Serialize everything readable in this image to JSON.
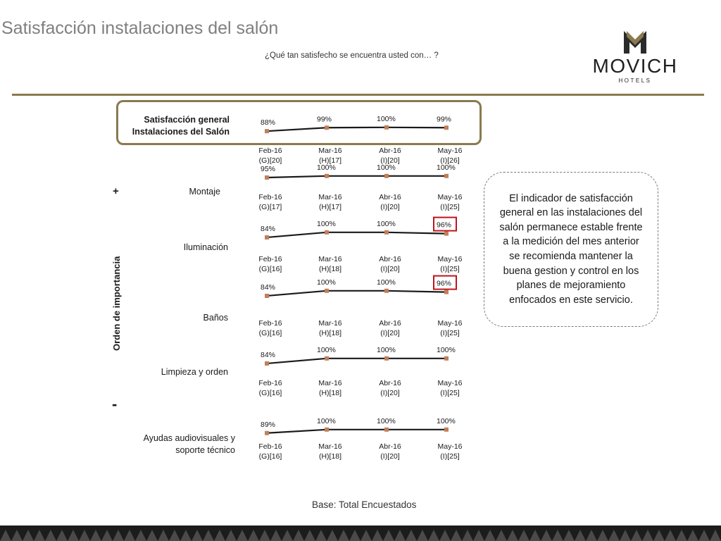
{
  "header": {
    "title": "Satisfacción instalaciones del salón",
    "question": "¿Qué tan satisfecho se encuentra usted con… ?"
  },
  "logo": {
    "name": "MOVICH",
    "sub": "HOTELS"
  },
  "importance": {
    "label": "Orden de importancia",
    "plus": "+",
    "minus": "-"
  },
  "note": "El indicador de satisfacción general en las instalaciones del salón permanece estable frente a la medición del mes anterior se recomienda mantener la buena gestion y control en los planes de mejoramiento enfocados en este servicio.",
  "base": "Base: Total Encuestados",
  "colors": {
    "gold": "#8a7a4e",
    "marker": "#c0805a",
    "line": "#1a1a1a",
    "highlight_box": "#c0141c"
  },
  "chart_data": [
    {
      "type": "line",
      "title": "Satisfacción general Instalaciones del Salón",
      "categories": [
        "Feb-16 (G)[20]",
        "Mar-16 (H)[17]",
        "Abr-16 (I)[20]",
        "May-16 (I)[26]"
      ],
      "values": [
        88,
        99,
        100,
        99
      ],
      "value_labels": [
        "88%",
        "99%",
        "100%",
        "99%"
      ],
      "highlighted": []
    },
    {
      "type": "line",
      "title": "Montaje",
      "categories": [
        "Feb-16 (G)[17]",
        "Mar-16 (H)[17]",
        "Abr-16 (I)[20]",
        "May-16 (I)[25]"
      ],
      "values": [
        95,
        100,
        100,
        100
      ],
      "value_labels": [
        "95%",
        "100%",
        "100%",
        "100%"
      ],
      "highlighted": []
    },
    {
      "type": "line",
      "title": "Iluminación",
      "categories": [
        "Feb-16 (G)[16]",
        "Mar-16 (H)[18]",
        "Abr-16 (I)[20]",
        "May-16 (I)[25]"
      ],
      "values": [
        84,
        100,
        100,
        96
      ],
      "value_labels": [
        "84%",
        "100%",
        "100%",
        "96%"
      ],
      "highlighted": [
        3
      ]
    },
    {
      "type": "line",
      "title": "Baños",
      "categories": [
        "Feb-16 (G)[16]",
        "Mar-16 (H)[18]",
        "Abr-16 (I)[20]",
        "May-16 (I)[25]"
      ],
      "values": [
        84,
        100,
        100,
        96
      ],
      "value_labels": [
        "84%",
        "100%",
        "100%",
        "96%"
      ],
      "highlighted": [
        3
      ]
    },
    {
      "type": "line",
      "title": "Limpieza y orden",
      "categories": [
        "Feb-16 (G)[16]",
        "Mar-16 (H)[18]",
        "Abr-16 (I)[20]",
        "May-16 (I)[25]"
      ],
      "values": [
        84,
        100,
        100,
        100
      ],
      "value_labels": [
        "84%",
        "100%",
        "100%",
        "100%"
      ],
      "highlighted": []
    },
    {
      "type": "line",
      "title": "Ayudas audiovisuales y soporte técnico",
      "categories": [
        "Feb-16 (G)[16]",
        "Mar-16 (H)[18]",
        "Abr-16 (I)[20]",
        "May-16 (I)[25]"
      ],
      "values": [
        89,
        100,
        100,
        100
      ],
      "value_labels": [
        "89%",
        "100%",
        "100%",
        "100%"
      ],
      "highlighted": []
    }
  ]
}
